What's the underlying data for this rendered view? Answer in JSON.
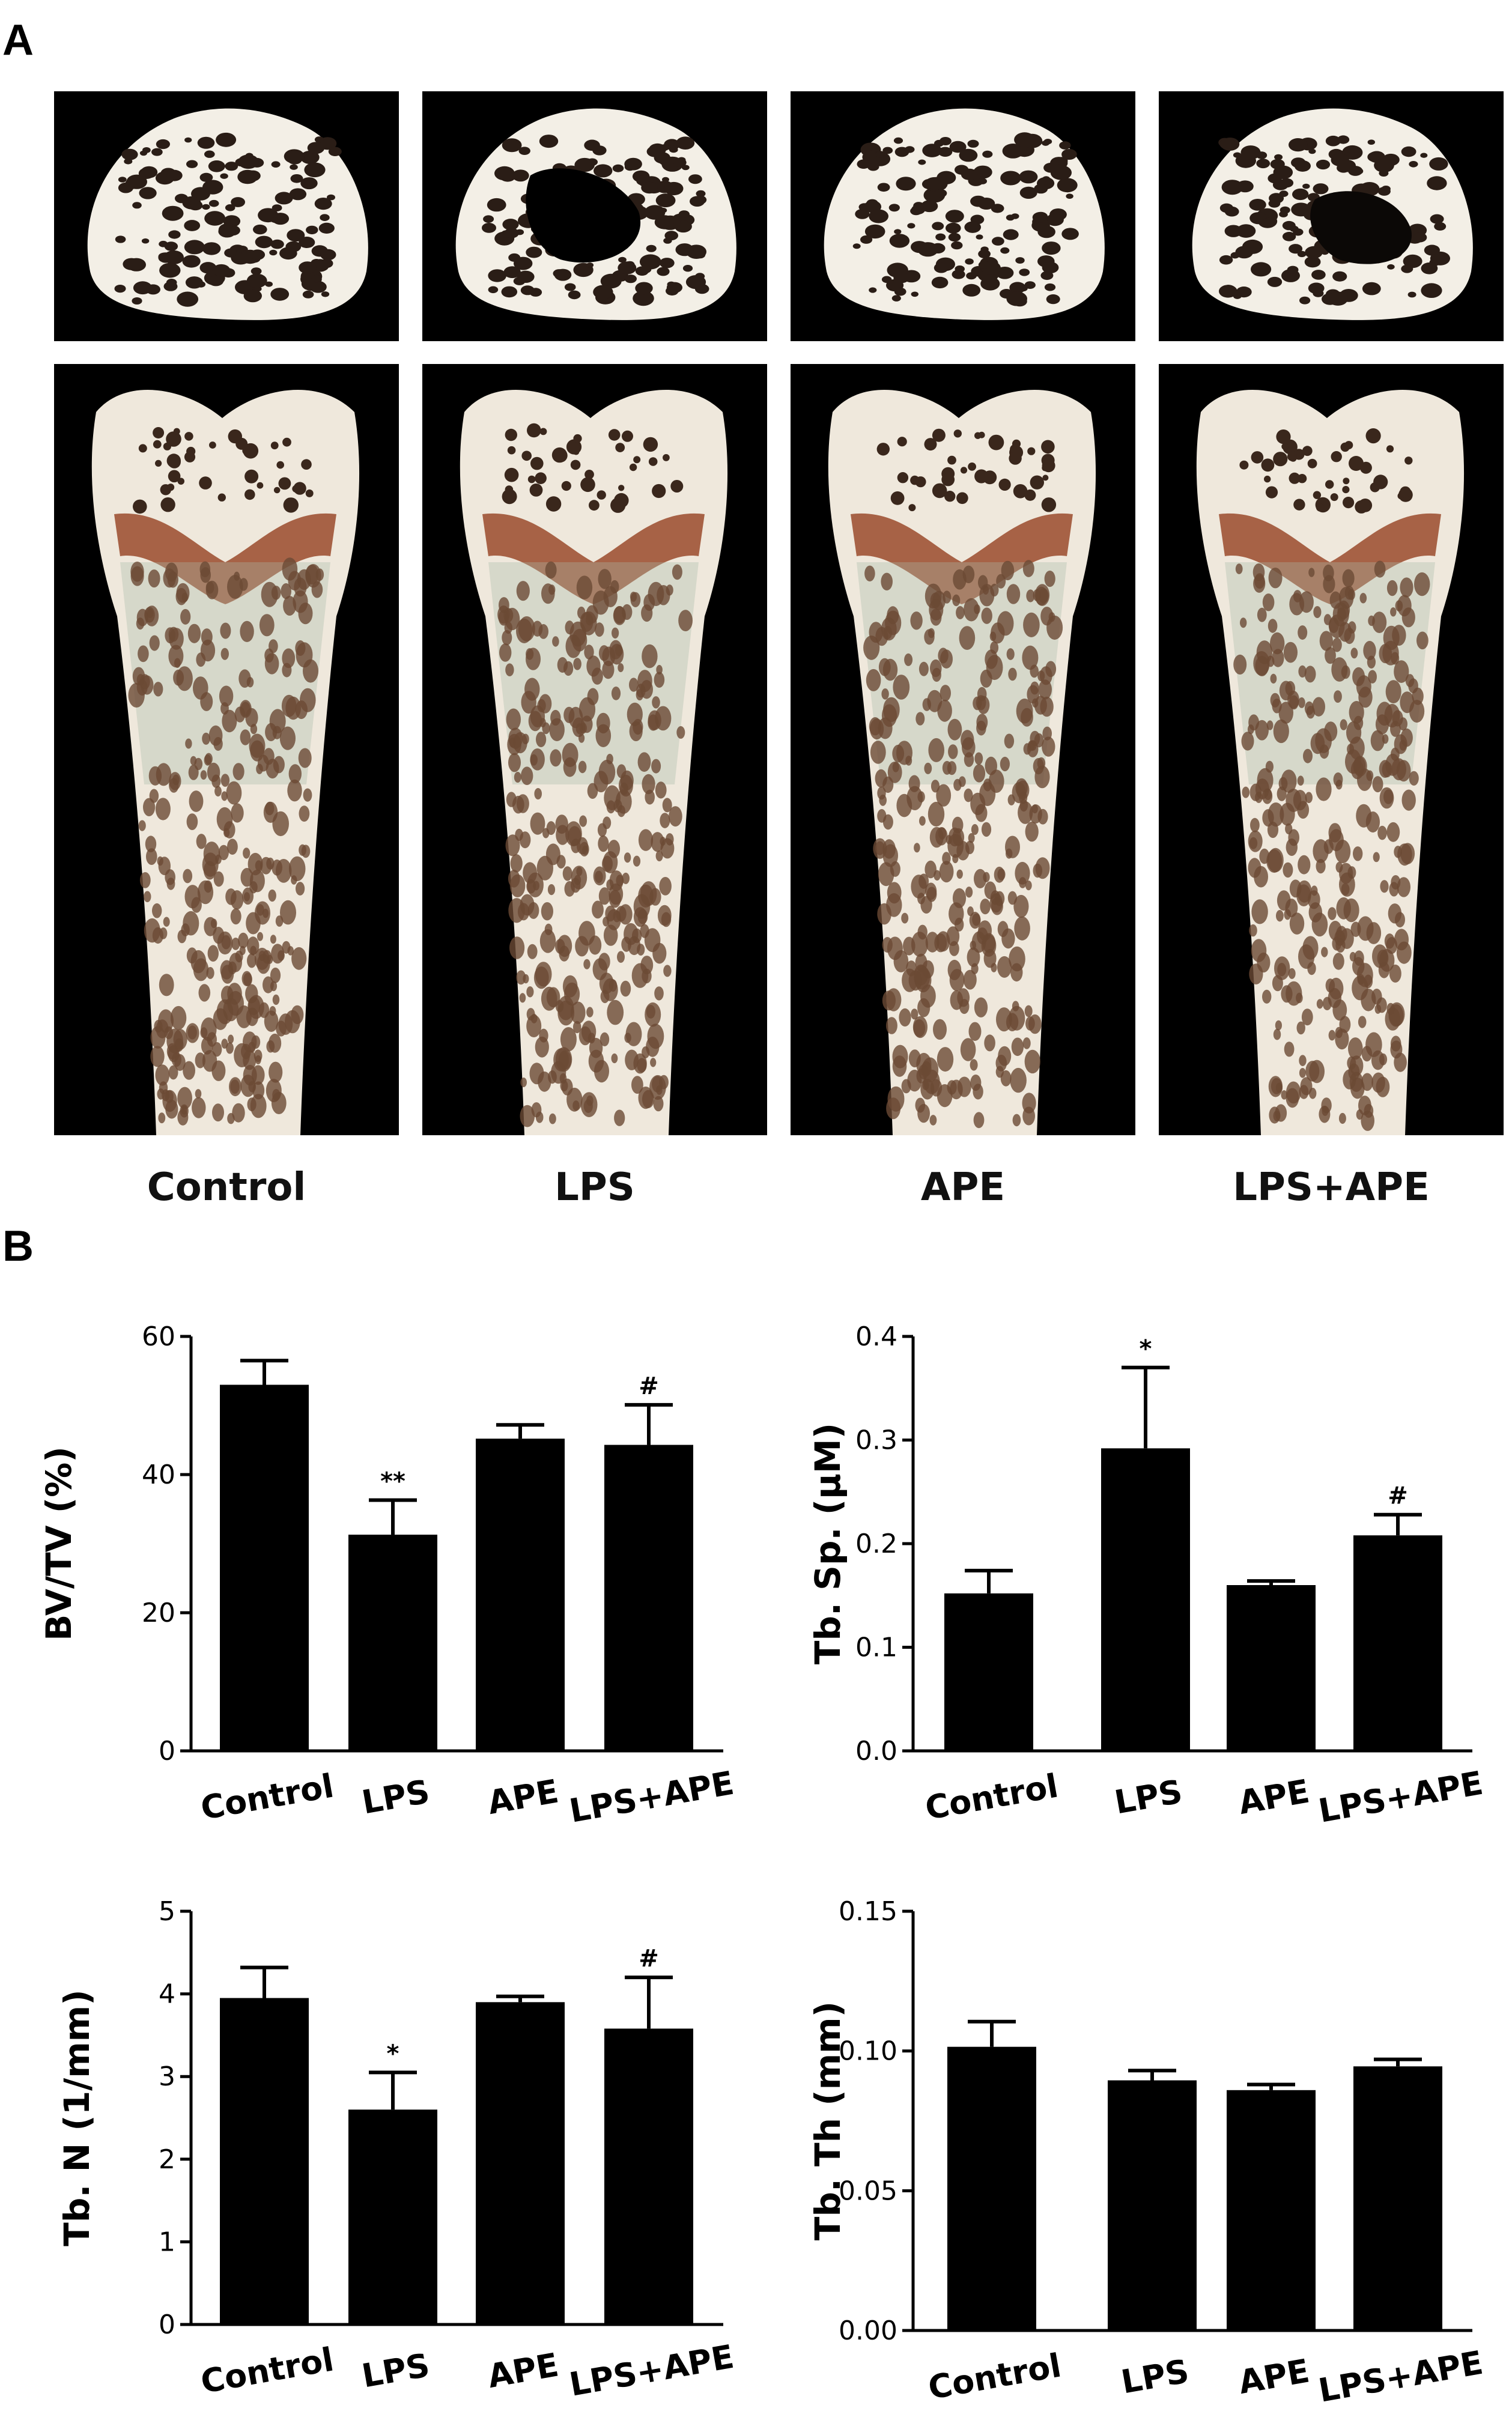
{
  "panels": {
    "a": "A",
    "b": "B"
  },
  "groups": [
    "Control",
    "LPS",
    "APE",
    "LPS+APE"
  ],
  "chart_data": [
    {
      "type": "bar",
      "categories": [
        "Control",
        "LPS",
        "APE",
        "LPS+APE"
      ],
      "values": [
        53,
        31.3,
        45.2,
        44.3
      ],
      "errors": [
        3.5,
        5.0,
        2.0,
        5.8
      ],
      "annotations": [
        "",
        "**",
        "",
        "#"
      ],
      "ylabel": "BV/TV (%)",
      "ylim": [
        0,
        60
      ],
      "yticks": [
        "0",
        "20",
        "40",
        "60"
      ],
      "bar_color": "#000000"
    },
    {
      "type": "bar",
      "categories": [
        "Control",
        "LPS",
        "APE",
        "LPS+APE"
      ],
      "values": [
        0.152,
        0.292,
        0.16,
        0.208
      ],
      "errors": [
        0.022,
        0.078,
        0.004,
        0.02
      ],
      "annotations": [
        "",
        "*",
        "",
        "#"
      ],
      "ylabel": "Tb. Sp. (μM)",
      "ylim": [
        0,
        0.4
      ],
      "yticks": [
        "0.0",
        "0.1",
        "0.2",
        "0.3",
        "0.4"
      ],
      "bar_color": "#000000"
    },
    {
      "type": "bar",
      "categories": [
        "Control",
        "LPS",
        "APE",
        "LPS+APE"
      ],
      "values": [
        3.95,
        2.6,
        3.9,
        3.58
      ],
      "errors": [
        0.37,
        0.45,
        0.07,
        0.62
      ],
      "annotations": [
        "",
        "*",
        "",
        "#"
      ],
      "ylabel": "Tb. N (1/mm)",
      "ylim": [
        0,
        5
      ],
      "yticks": [
        "0",
        "1",
        "2",
        "3",
        "4",
        "5"
      ],
      "bar_color": "#000000"
    },
    {
      "type": "bar",
      "categories": [
        "Control",
        "LPS",
        "APE",
        "LPS+APE"
      ],
      "values": [
        0.1015,
        0.0895,
        0.086,
        0.0945
      ],
      "errors": [
        0.009,
        0.0035,
        0.002,
        0.0025
      ],
      "annotations": [
        "",
        "",
        "",
        ""
      ],
      "ylabel": "Tb. Th (mm)",
      "ylim": [
        0,
        0.15
      ],
      "yticks": [
        "0.00",
        "0.05",
        "0.10",
        "0.15"
      ],
      "bar_color": "#000000"
    }
  ]
}
